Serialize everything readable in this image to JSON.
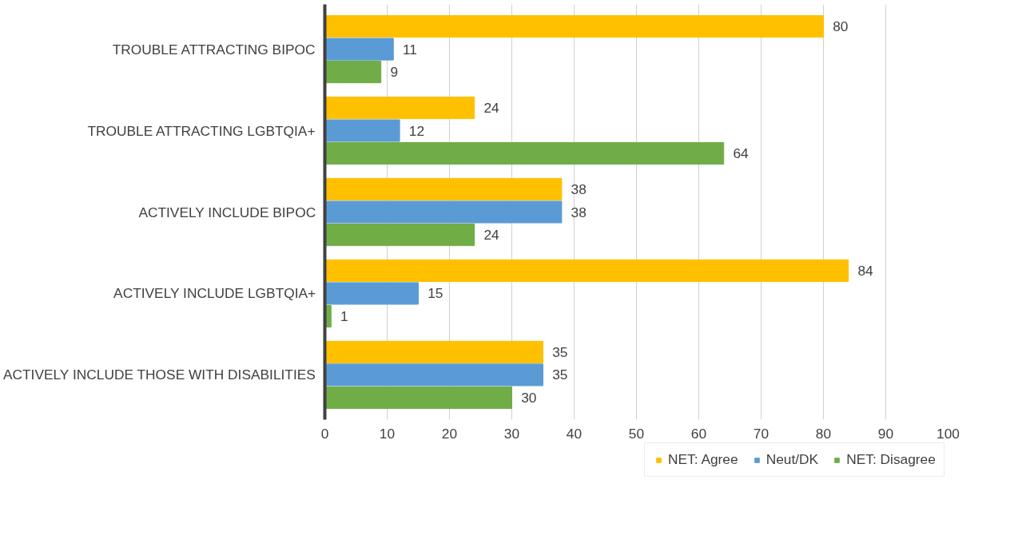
{
  "chart_data": {
    "type": "bar",
    "orientation": "horizontal",
    "categories": [
      "TROUBLE ATTRACTING BIPOC",
      "TROUBLE ATTRACTING LGBTQIA+",
      "ACTIVELY INCLUDE BIPOC",
      "ACTIVELY INCLUDE LGBTQIA+",
      "ACTIVELY INCLUDE THOSE WITH DISABILITIES"
    ],
    "series": [
      {
        "name": "NET: Agree",
        "color": "#ffc000",
        "values": [
          80,
          24,
          38,
          84,
          35
        ]
      },
      {
        "name": "Neut/DK",
        "color": "#5b9bd5",
        "values": [
          11,
          12,
          38,
          15,
          35
        ]
      },
      {
        "name": "NET: Disagree",
        "color": "#70ad47",
        "values": [
          9,
          64,
          24,
          1,
          30
        ]
      }
    ],
    "xlim": [
      0,
      100
    ],
    "xticks": [
      0,
      10,
      20,
      30,
      40,
      50,
      60,
      70,
      80,
      90,
      100
    ],
    "grid": "x",
    "legend": "bottom",
    "data_labels": true
  }
}
